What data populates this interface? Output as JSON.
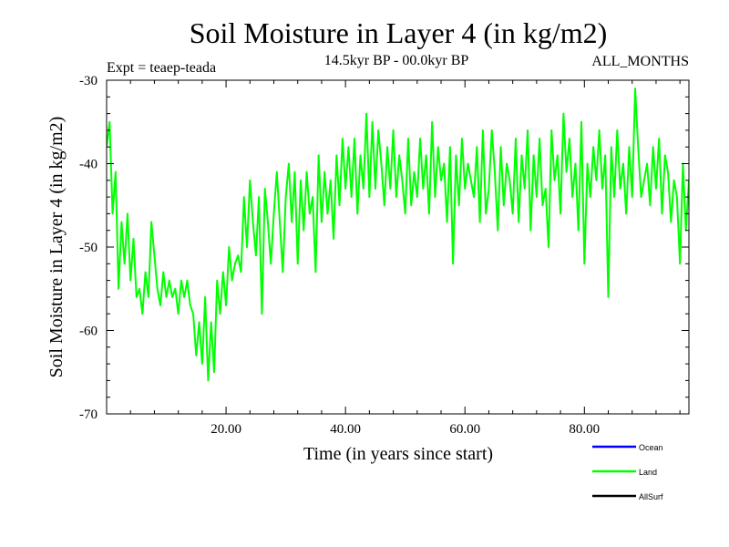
{
  "chart_data": {
    "type": "line",
    "title": "Soil Moisture in Layer 4 (in kg/m2)",
    "subtitle_left": "Expt = teaep-teada",
    "subtitle_center": "14.5kyr BP - 00.0kyr BP",
    "subtitle_right": "ALL_MONTHS",
    "xlabel": "Time (in years since start)",
    "ylabel": "Soil Moisture in Layer 4 (in kg/m2)",
    "xlim": [
      0,
      97.5
    ],
    "ylim": [
      -70,
      -30
    ],
    "x_ticks": [
      20,
      40,
      60,
      80
    ],
    "x_tick_labels": [
      "20.00",
      "40.00",
      "60.00",
      "80.00"
    ],
    "y_ticks": [
      -30,
      -40,
      -50,
      -60,
      -70
    ],
    "y_tick_labels": [
      "-30",
      "-40",
      "-50",
      "-60",
      "-70"
    ],
    "grid": false,
    "legend_position": "bottom-right",
    "legend": [
      {
        "name": "Ocean",
        "color": "#0000ff"
      },
      {
        "name": "Land",
        "color": "#00ff00"
      },
      {
        "name": "AllSurf",
        "color": "#000000"
      }
    ],
    "series": [
      {
        "name": "Land",
        "color": "#00ff00",
        "x": [
          0,
          0.5,
          1,
          1.5,
          2,
          2.5,
          3,
          3.5,
          4,
          4.5,
          5,
          5.5,
          6,
          6.5,
          7,
          7.5,
          8,
          8.5,
          9,
          9.5,
          10,
          10.5,
          11,
          11.5,
          12,
          12.5,
          13,
          13.5,
          14,
          14.5,
          15,
          15.5,
          16,
          16.5,
          17,
          17.5,
          18,
          18.5,
          19,
          19.5,
          20,
          20.5,
          21,
          21.5,
          22,
          22.5,
          23,
          23.5,
          24,
          24.5,
          25,
          25.5,
          26,
          26.5,
          27,
          27.5,
          28,
          28.5,
          29,
          29.5,
          30,
          30.5,
          31,
          31.5,
          32,
          32.5,
          33,
          33.5,
          34,
          34.5,
          35,
          35.5,
          36,
          36.5,
          37,
          37.5,
          38,
          38.5,
          39,
          39.5,
          40,
          40.5,
          41,
          41.5,
          42,
          42.5,
          43,
          43.5,
          44,
          44.5,
          45,
          45.5,
          46,
          46.5,
          47,
          47.5,
          48,
          48.5,
          49,
          49.5,
          50,
          50.5,
          51,
          51.5,
          52,
          52.5,
          53,
          53.5,
          54,
          54.5,
          55,
          55.5,
          56,
          56.5,
          57,
          57.5,
          58,
          58.5,
          59,
          59.5,
          60,
          60.5,
          61,
          61.5,
          62,
          62.5,
          63,
          63.5,
          64,
          64.5,
          65,
          65.5,
          66,
          66.5,
          67,
          67.5,
          68,
          68.5,
          69,
          69.5,
          70,
          70.5,
          71,
          71.5,
          72,
          72.5,
          73,
          73.5,
          74,
          74.5,
          75,
          75.5,
          76,
          76.5,
          77,
          77.5,
          78,
          78.5,
          79,
          79.5,
          80,
          80.5,
          81,
          81.5,
          82,
          82.5,
          83,
          83.5,
          84,
          84.5,
          85,
          85.5,
          86,
          86.5,
          87,
          87.5,
          88,
          88.5,
          89,
          89.5,
          90,
          90.5,
          91,
          91.5,
          92,
          92.5,
          93,
          93.5,
          94,
          94.5,
          95,
          95.5,
          96,
          96.5,
          97,
          97.5
        ],
        "values": [
          -38,
          -35,
          -46,
          -41,
          -55,
          -47,
          -52,
          -46,
          -54,
          -49,
          -56,
          -55,
          -58,
          -53,
          -56,
          -47,
          -51,
          -55,
          -57,
          -53,
          -56,
          -54,
          -56,
          -55,
          -58,
          -54,
          -56,
          -54,
          -57,
          -58,
          -63,
          -59,
          -64,
          -56,
          -66,
          -59,
          -65,
          -54,
          -58,
          -53,
          -57,
          -50,
          -54,
          -52,
          -51,
          -53,
          -44,
          -50,
          -42,
          -47,
          -51,
          -44,
          -58,
          -43,
          -47,
          -52,
          -46,
          -41,
          -47,
          -53,
          -44,
          -40,
          -47,
          -41,
          -52,
          -42,
          -48,
          -41,
          -46,
          -44,
          -53,
          -39,
          -47,
          -41,
          -46,
          -42,
          -49,
          -39,
          -45,
          -37,
          -43,
          -38,
          -44,
          -37,
          -46,
          -39,
          -43,
          -34,
          -44,
          -35,
          -43,
          -36,
          -40,
          -45,
          -38,
          -43,
          -36,
          -44,
          -39,
          -42,
          -46,
          -37,
          -45,
          -41,
          -44,
          -37,
          -43,
          -39,
          -46,
          -35,
          -44,
          -38,
          -42,
          -40,
          -47,
          -38,
          -52,
          -39,
          -45,
          -37,
          -43,
          -40,
          -42,
          -44,
          -38,
          -47,
          -36,
          -46,
          -43,
          -36,
          -41,
          -48,
          -38,
          -45,
          -40,
          -42,
          -46,
          -37,
          -47,
          -39,
          -43,
          -36,
          -48,
          -39,
          -44,
          -37,
          -45,
          -43,
          -50,
          -36,
          -42,
          -39,
          -46,
          -34,
          -41,
          -37,
          -44,
          -40,
          -48,
          -35,
          -52,
          -40,
          -44,
          -38,
          -42,
          -36,
          -43,
          -39,
          -56,
          -38,
          -44,
          -36,
          -43,
          -40,
          -46,
          -38,
          -44,
          -31,
          -38,
          -44,
          -42,
          -40,
          -45,
          -38,
          -43,
          -37,
          -46,
          -39,
          -41,
          -47,
          -42,
          -44,
          -52,
          -40,
          -48,
          -42
        ]
      },
      {
        "name": "Ocean",
        "color": "#0000ff",
        "values": []
      },
      {
        "name": "AllSurf",
        "color": "#000000",
        "values": []
      }
    ]
  }
}
